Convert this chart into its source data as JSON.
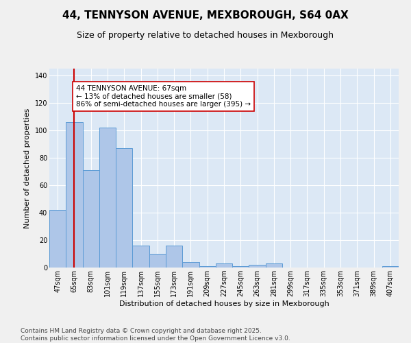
{
  "title": "44, TENNYSON AVENUE, MEXBOROUGH, S64 0AX",
  "subtitle": "Size of property relative to detached houses in Mexborough",
  "xlabel": "Distribution of detached houses by size in Mexborough",
  "ylabel": "Number of detached properties",
  "categories": [
    "47sqm",
    "65sqm",
    "83sqm",
    "101sqm",
    "119sqm",
    "137sqm",
    "155sqm",
    "173sqm",
    "191sqm",
    "209sqm",
    "227sqm",
    "245sqm",
    "263sqm",
    "281sqm",
    "299sqm",
    "317sqm",
    "335sqm",
    "353sqm",
    "371sqm",
    "389sqm",
    "407sqm"
  ],
  "values": [
    42,
    106,
    71,
    102,
    87,
    16,
    10,
    16,
    4,
    1,
    3,
    1,
    2,
    3,
    0,
    0,
    0,
    0,
    0,
    0,
    1
  ],
  "bar_color": "#aec6e8",
  "bar_edge_color": "#5b9bd5",
  "vline_x": 1,
  "vline_color": "#cc0000",
  "annotation_text": "44 TENNYSON AVENUE: 67sqm\n← 13% of detached houses are smaller (58)\n86% of semi-detached houses are larger (395) →",
  "annotation_box_color": "#ffffff",
  "annotation_box_edge": "#cc0000",
  "ylim": [
    0,
    145
  ],
  "yticks": [
    0,
    20,
    40,
    60,
    80,
    100,
    120,
    140
  ],
  "background_color": "#dce8f5",
  "fig_background": "#f0f0f0",
  "footer": "Contains HM Land Registry data © Crown copyright and database right 2025.\nContains public sector information licensed under the Open Government Licence v3.0.",
  "title_fontsize": 11,
  "subtitle_fontsize": 9,
  "axis_label_fontsize": 8,
  "tick_fontsize": 7,
  "annotation_fontsize": 7.5,
  "footer_fontsize": 6.5
}
